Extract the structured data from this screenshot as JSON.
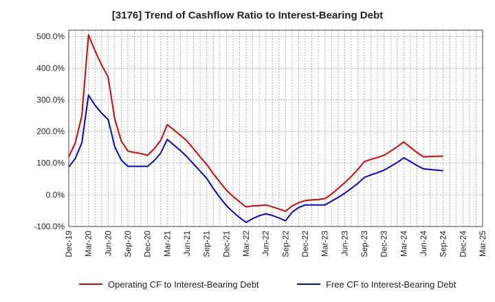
{
  "chart_data": {
    "type": "line",
    "title": "[3176]  Trend of Cashflow Ratio to Interest-Bearing Debt",
    "xlabel": "",
    "ylabel": "",
    "ylim": [
      -100,
      520
    ],
    "yticks": [
      -100,
      0,
      100,
      200,
      300,
      400,
      500
    ],
    "ytick_labels": [
      "-100.0%",
      "0.0%",
      "100.0%",
      "200.0%",
      "300.0%",
      "400.0%",
      "500.0%"
    ],
    "xticks": [
      "Dec-19",
      "Mar-20",
      "Jun-20",
      "Sep-20",
      "Dec-20",
      "Mar-21",
      "Jun-21",
      "Sep-21",
      "Dec-21",
      "Mar-22",
      "Jun-22",
      "Sep-22",
      "Dec-22",
      "Mar-23",
      "Jun-23",
      "Sep-23",
      "Dec-23",
      "Mar-24",
      "Jun-24",
      "Sep-24",
      "Dec-24",
      "Mar-25"
    ],
    "grid": true,
    "legend_position": "bottom",
    "series": [
      {
        "name": "Operating CF to Interest-Bearing Debt",
        "color": "#dd0000",
        "values": [
          120,
          165,
          250,
          505,
          455,
          410,
          372,
          240,
          170,
          138,
          134,
          130,
          125,
          145,
          172,
          222,
          205,
          188,
          170,
          145,
          120,
          96,
          67,
          40,
          15,
          -5,
          -22,
          -38,
          -35,
          -34,
          -32,
          -38,
          -45,
          -52,
          -35,
          -25,
          -18,
          -16,
          -15,
          -12,
          2,
          20,
          38,
          58,
          80,
          105,
          112,
          118,
          125,
          138,
          152,
          167,
          150,
          134,
          120,
          121,
          122,
          122
        ]
      },
      {
        "name": "Free CF to Interest-Bearing Debt",
        "color": "#0000dd",
        "values": [
          88,
          115,
          165,
          315,
          283,
          258,
          238,
          152,
          110,
          90,
          90,
          90,
          90,
          108,
          132,
          175,
          157,
          140,
          120,
          97,
          75,
          52,
          20,
          -8,
          -34,
          -54,
          -72,
          -87,
          -75,
          -66,
          -60,
          -65,
          -73,
          -82,
          -55,
          -40,
          -32,
          -32,
          -32,
          -32,
          -20,
          -8,
          5,
          20,
          36,
          55,
          63,
          70,
          78,
          90,
          102,
          117,
          105,
          93,
          82,
          80,
          78,
          76
        ]
      }
    ]
  }
}
